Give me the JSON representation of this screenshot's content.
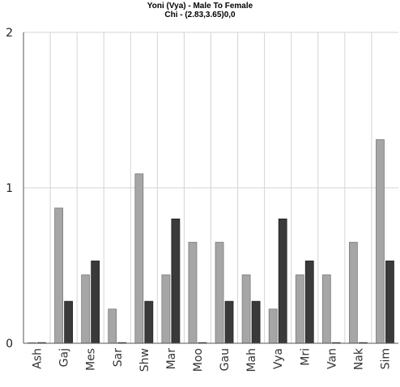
{
  "chart_data": {
    "type": "bar",
    "title": "Yoni (Vya) - Male To Female",
    "subtitle": "Chi - (2.83,3.65)0,0",
    "categories": [
      "Ash",
      "Gaj",
      "Mes",
      "Sar",
      "Shw",
      "Mar",
      "Moo",
      "Gau",
      "Mah",
      "Vya",
      "Mri",
      "Van",
      "Nak",
      "Sim"
    ],
    "series": [
      {
        "color": "#a6a6a6",
        "values": [
          0,
          0.87,
          0.44,
          0.22,
          1.09,
          0.44,
          0.65,
          0.65,
          0.44,
          0.22,
          0.44,
          0.44,
          0.65,
          1.31
        ]
      },
      {
        "color": "#3a3a3a",
        "values": [
          0,
          0.27,
          0.53,
          0,
          0.27,
          0.8,
          0,
          0.27,
          0.27,
          0.8,
          0.53,
          0,
          0,
          0.53
        ]
      }
    ],
    "ylim": [
      0,
      2
    ],
    "yticks": [
      "0",
      "1",
      "2"
    ],
    "grid": true
  }
}
